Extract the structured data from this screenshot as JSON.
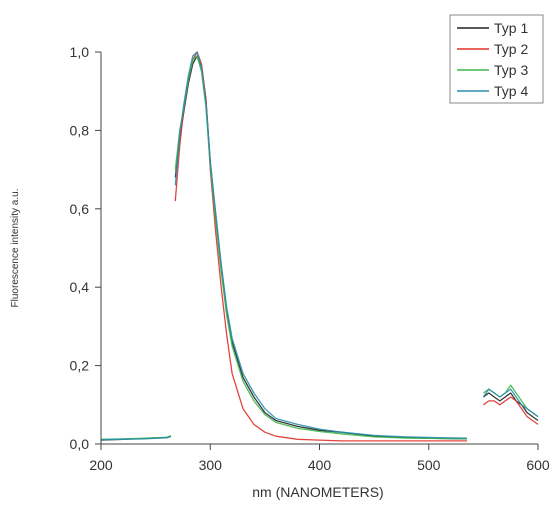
{
  "chart_data": {
    "type": "line",
    "title": "",
    "xlabel": "nm (NANOMETERS)",
    "ylabel": "Fluorescence intensity a.u.",
    "xlim": [
      200,
      600
    ],
    "ylim": [
      0,
      1.0
    ],
    "x_ticks": [
      "200",
      "300",
      "400",
      "500",
      "600"
    ],
    "y_ticks": [
      "0,0",
      "0,2",
      "0,4",
      "0,6",
      "0,8",
      "1,0"
    ],
    "legend_position": "top-right",
    "grid": false,
    "series": [
      {
        "name": "Typ 1",
        "color": "#222222",
        "segments": [
          {
            "x": [
              200,
              220,
              240,
              260,
              264
            ],
            "y": [
              0.01,
              0.012,
              0.014,
              0.016,
              0.02
            ]
          },
          {
            "x": [
              268,
              272,
              276,
              280,
              284,
              288,
              292,
              296,
              300,
              305,
              310,
              315,
              320,
              330,
              340,
              350,
              360,
              380,
              400,
              420,
              450,
              480,
              510,
              535
            ],
            "y": [
              0.68,
              0.78,
              0.85,
              0.92,
              0.97,
              0.99,
              0.96,
              0.88,
              0.72,
              0.58,
              0.45,
              0.34,
              0.26,
              0.17,
              0.12,
              0.08,
              0.06,
              0.045,
              0.035,
              0.03,
              0.02,
              0.016,
              0.014,
              0.013
            ]
          },
          {
            "x": [
              550,
              555,
              560,
              565,
              570,
              575,
              580,
              585,
              590,
              595,
              600
            ],
            "y": [
              0.12,
              0.13,
              0.12,
              0.11,
              0.12,
              0.13,
              0.11,
              0.1,
              0.08,
              0.07,
              0.06
            ]
          }
        ]
      },
      {
        "name": "Typ 2",
        "color": "#e0302a",
        "segments": [
          {
            "x": [
              268,
              272,
              276,
              280,
              284,
              288,
              292,
              296,
              300,
              305,
              310,
              315,
              320,
              330,
              340,
              350,
              360,
              380,
              400,
              420,
              450,
              480,
              510,
              535
            ],
            "y": [
              0.62,
              0.76,
              0.86,
              0.93,
              0.98,
              1.0,
              0.97,
              0.88,
              0.7,
              0.54,
              0.4,
              0.28,
              0.18,
              0.09,
              0.05,
              0.03,
              0.02,
              0.012,
              0.01,
              0.008,
              0.008,
              0.008,
              0.008,
              0.008
            ]
          },
          {
            "x": [
              550,
              555,
              560,
              565,
              570,
              575,
              580,
              585,
              590,
              595,
              600
            ],
            "y": [
              0.1,
              0.11,
              0.11,
              0.1,
              0.11,
              0.12,
              0.11,
              0.09,
              0.07,
              0.06,
              0.05
            ]
          }
        ]
      },
      {
        "name": "Typ 3",
        "color": "#3db84a",
        "segments": [
          {
            "x": [
              200,
              220,
              240,
              260,
              264
            ],
            "y": [
              0.012,
              0.013,
              0.015,
              0.017,
              0.021
            ]
          },
          {
            "x": [
              268,
              272,
              276,
              280,
              284,
              288,
              292,
              296,
              300,
              305,
              310,
              315,
              320,
              330,
              340,
              350,
              360,
              380,
              400,
              420,
              450,
              480,
              510,
              535
            ],
            "y": [
              0.7,
              0.8,
              0.86,
              0.93,
              0.98,
              0.99,
              0.95,
              0.86,
              0.71,
              0.57,
              0.44,
              0.33,
              0.25,
              0.16,
              0.11,
              0.075,
              0.055,
              0.04,
              0.032,
              0.026,
              0.018,
              0.015,
              0.014,
              0.013
            ]
          },
          {
            "x": [
              550,
              555,
              560,
              565,
              570,
              575,
              580,
              585,
              590,
              595,
              600
            ],
            "y": [
              0.13,
              0.14,
              0.13,
              0.12,
              0.13,
              0.15,
              0.13,
              0.11,
              0.09,
              0.08,
              0.07
            ]
          }
        ]
      },
      {
        "name": "Typ 4",
        "color": "#2a8fb0",
        "segments": [
          {
            "x": [
              200,
              220,
              240,
              260,
              264
            ],
            "y": [
              0.011,
              0.012,
              0.013,
              0.016,
              0.019
            ]
          },
          {
            "x": [
              268,
              272,
              276,
              280,
              284,
              288,
              292,
              296,
              300,
              305,
              310,
              315,
              320,
              330,
              340,
              350,
              360,
              380,
              400,
              420,
              450,
              480,
              510,
              535
            ],
            "y": [
              0.66,
              0.79,
              0.87,
              0.94,
              0.99,
              1.0,
              0.96,
              0.87,
              0.72,
              0.59,
              0.46,
              0.35,
              0.27,
              0.18,
              0.13,
              0.09,
              0.065,
              0.05,
              0.038,
              0.03,
              0.022,
              0.018,
              0.016,
              0.015
            ]
          },
          {
            "x": [
              550,
              555,
              560,
              565,
              570,
              575,
              580,
              585,
              590,
              595,
              600
            ],
            "y": [
              0.12,
              0.14,
              0.13,
              0.12,
              0.13,
              0.14,
              0.12,
              0.1,
              0.09,
              0.08,
              0.07
            ]
          }
        ]
      }
    ]
  }
}
